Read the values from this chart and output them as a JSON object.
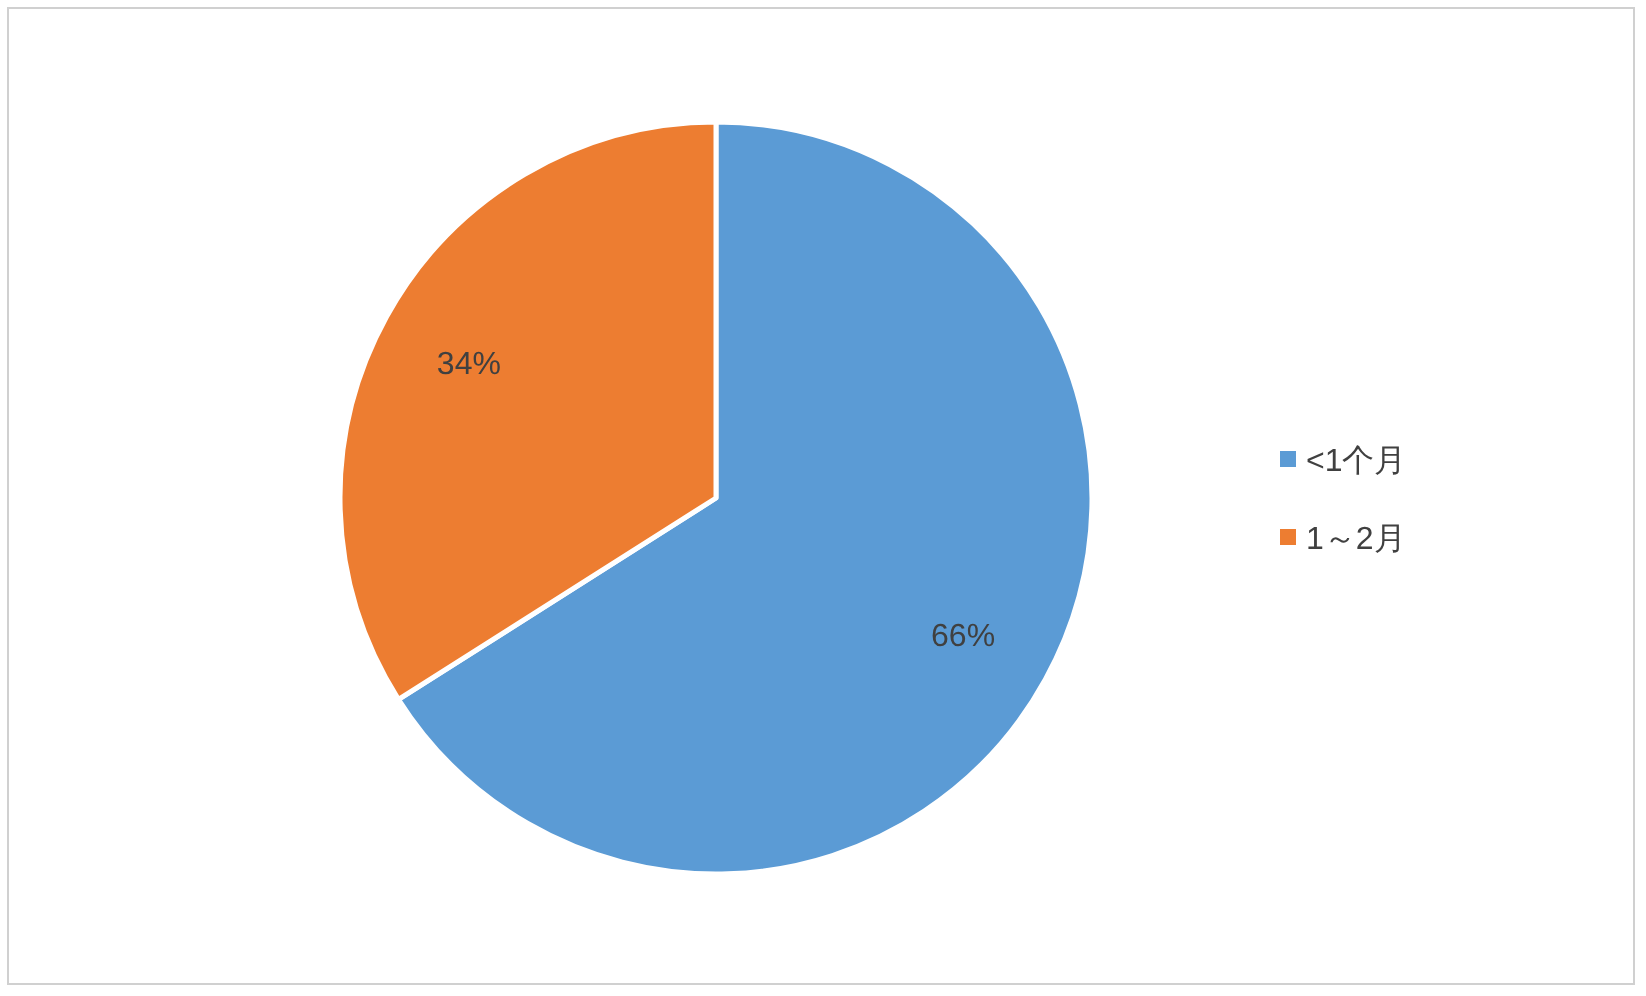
{
  "chart_data": {
    "type": "pie",
    "categories": [
      "<1个月",
      "1～2月"
    ],
    "values": [
      66,
      34
    ],
    "colors": [
      "#5b9bd5",
      "#ed7d31"
    ],
    "value_labels": [
      "66%",
      "34%"
    ],
    "legend": "right"
  }
}
